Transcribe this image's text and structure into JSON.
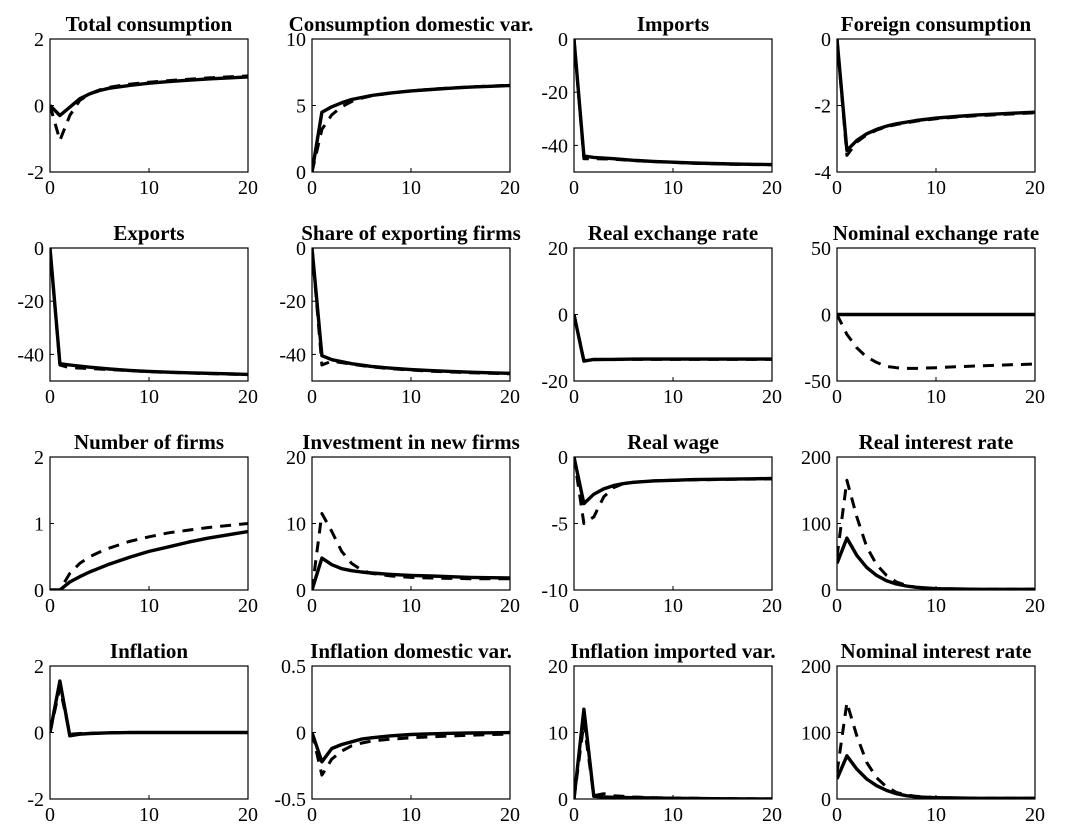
{
  "chart_data": [
    {
      "type": "line",
      "title": "Total consumption",
      "xlim": [
        0,
        20
      ],
      "ylim": [
        -2,
        2
      ],
      "xticks": [
        0,
        10,
        20
      ],
      "yticks": [
        -2,
        0,
        2
      ],
      "x": [
        0,
        1,
        2,
        3,
        4,
        5,
        6,
        8,
        10,
        12,
        14,
        16,
        18,
        20
      ],
      "series": [
        {
          "style": "solid",
          "values": [
            0,
            -0.3,
            -0.05,
            0.2,
            0.35,
            0.45,
            0.52,
            0.6,
            0.67,
            0.72,
            0.76,
            0.8,
            0.83,
            0.86
          ]
        },
        {
          "style": "dashed",
          "values": [
            0,
            -1.05,
            -0.3,
            0.15,
            0.35,
            0.47,
            0.55,
            0.64,
            0.7,
            0.75,
            0.79,
            0.83,
            0.86,
            0.89
          ]
        }
      ]
    },
    {
      "type": "line",
      "title": "Consumption domestic var.",
      "xlim": [
        0,
        20
      ],
      "ylim": [
        0,
        10
      ],
      "xticks": [
        0,
        10,
        20
      ],
      "yticks": [
        0,
        5,
        10
      ],
      "x": [
        0,
        1,
        2,
        3,
        4,
        5,
        6,
        8,
        10,
        12,
        14,
        16,
        18,
        20
      ],
      "series": [
        {
          "style": "solid",
          "values": [
            0,
            4.5,
            4.9,
            5.2,
            5.45,
            5.6,
            5.75,
            5.95,
            6.1,
            6.2,
            6.3,
            6.38,
            6.44,
            6.5
          ]
        },
        {
          "style": "dashed",
          "values": [
            0,
            3.2,
            4.3,
            4.9,
            5.3,
            5.55,
            5.72,
            5.95,
            6.1,
            6.22,
            6.32,
            6.4,
            6.46,
            6.52
          ]
        }
      ]
    },
    {
      "type": "line",
      "title": "Imports",
      "xlim": [
        0,
        20
      ],
      "ylim": [
        -50,
        0
      ],
      "xticks": [
        0,
        10,
        20
      ],
      "yticks": [
        -40,
        -20,
        0
      ],
      "x": [
        0,
        1,
        2,
        4,
        6,
        8,
        10,
        12,
        14,
        16,
        18,
        20
      ],
      "series": [
        {
          "style": "solid",
          "values": [
            0,
            -44,
            -44.5,
            -45,
            -45.6,
            -46,
            -46.3,
            -46.6,
            -46.8,
            -47,
            -47.1,
            -47.2
          ]
        },
        {
          "style": "dashed",
          "values": [
            0,
            -45,
            -45,
            -45.2,
            -45.7,
            -46.1,
            -46.4,
            -46.7,
            -46.9,
            -47.1,
            -47.2,
            -47.3
          ]
        }
      ]
    },
    {
      "type": "line",
      "title": "Foreign consumption",
      "xlim": [
        0,
        20
      ],
      "ylim": [
        -4,
        0
      ],
      "xticks": [
        0,
        10,
        20
      ],
      "yticks": [
        -4,
        -2,
        0
      ],
      "x": [
        0,
        1,
        2,
        3,
        4,
        5,
        6,
        8,
        10,
        12,
        14,
        16,
        18,
        20
      ],
      "series": [
        {
          "style": "solid",
          "values": [
            0,
            -3.35,
            -3.05,
            -2.85,
            -2.72,
            -2.62,
            -2.55,
            -2.45,
            -2.38,
            -2.33,
            -2.29,
            -2.26,
            -2.23,
            -2.2
          ]
        },
        {
          "style": "dashed",
          "values": [
            0,
            -3.5,
            -3.1,
            -2.88,
            -2.74,
            -2.64,
            -2.57,
            -2.47,
            -2.4,
            -2.35,
            -2.31,
            -2.28,
            -2.25,
            -2.22
          ]
        }
      ]
    },
    {
      "type": "line",
      "title": "Exports",
      "xlim": [
        0,
        20
      ],
      "ylim": [
        -50,
        0
      ],
      "xticks": [
        0,
        10,
        20
      ],
      "yticks": [
        -40,
        -20,
        0
      ],
      "x": [
        0,
        1,
        2,
        4,
        6,
        8,
        10,
        12,
        14,
        16,
        18,
        20
      ],
      "series": [
        {
          "style": "solid",
          "values": [
            0,
            -43.5,
            -44,
            -44.8,
            -45.5,
            -46,
            -46.4,
            -46.7,
            -46.9,
            -47.1,
            -47.3,
            -47.5
          ]
        },
        {
          "style": "dashed",
          "values": [
            0,
            -44,
            -45,
            -45.3,
            -45.7,
            -46.1,
            -46.5,
            -46.8,
            -47,
            -47.2,
            -47.4,
            -47.6
          ]
        }
      ]
    },
    {
      "type": "line",
      "title": "Share of exporting firms",
      "xlim": [
        0,
        20
      ],
      "ylim": [
        -50,
        0
      ],
      "xticks": [
        0,
        10,
        20
      ],
      "yticks": [
        -40,
        -20,
        0
      ],
      "x": [
        0,
        1,
        2,
        4,
        6,
        8,
        10,
        12,
        14,
        16,
        18,
        20
      ],
      "series": [
        {
          "style": "solid",
          "values": [
            0,
            -40.5,
            -42,
            -43.5,
            -44.5,
            -45.2,
            -45.7,
            -46.1,
            -46.4,
            -46.7,
            -46.9,
            -47.1
          ]
        },
        {
          "style": "dashed",
          "values": [
            0,
            -44,
            -42.5,
            -43.7,
            -44.7,
            -45.4,
            -45.9,
            -46.3,
            -46.6,
            -46.9,
            -47.1,
            -47.3
          ]
        }
      ]
    },
    {
      "type": "line",
      "title": "Real exchange rate",
      "xlim": [
        0,
        20
      ],
      "ylim": [
        -20,
        20
      ],
      "xticks": [
        0,
        10,
        20
      ],
      "yticks": [
        -20,
        0,
        20
      ],
      "x": [
        0,
        1,
        2,
        4,
        6,
        8,
        10,
        12,
        14,
        16,
        18,
        20
      ],
      "series": [
        {
          "style": "solid",
          "values": [
            0,
            -14,
            -13.5,
            -13.5,
            -13.4,
            -13.4,
            -13.4,
            -13.4,
            -13.4,
            -13.4,
            -13.4,
            -13.4
          ]
        },
        {
          "style": "dashed",
          "values": [
            0,
            -13.8,
            -13.6,
            -13.5,
            -13.5,
            -13.5,
            -13.5,
            -13.5,
            -13.5,
            -13.5,
            -13.5,
            -13.5
          ]
        }
      ]
    },
    {
      "type": "line",
      "title": "Nominal exchange rate",
      "xlim": [
        0,
        20
      ],
      "ylim": [
        -50,
        50
      ],
      "xticks": [
        0,
        10,
        20
      ],
      "yticks": [
        -50,
        0,
        50
      ],
      "x": [
        0,
        1,
        2,
        3,
        4,
        5,
        6,
        7,
        8,
        10,
        12,
        14,
        16,
        18,
        20
      ],
      "series": [
        {
          "style": "solid",
          "values": [
            0,
            0,
            0,
            0,
            0,
            0,
            0,
            0,
            0,
            0,
            0,
            0,
            0,
            0,
            0
          ]
        },
        {
          "style": "dashed",
          "values": [
            0,
            -15,
            -25,
            -32,
            -36,
            -39,
            -40,
            -40.5,
            -40.5,
            -40,
            -39.3,
            -38.7,
            -38.2,
            -37.7,
            -37.3
          ]
        }
      ]
    },
    {
      "type": "line",
      "title": "Number of firms",
      "xlim": [
        0,
        20
      ],
      "ylim": [
        0,
        2
      ],
      "xticks": [
        0,
        10,
        20
      ],
      "yticks": [
        0,
        1,
        2
      ],
      "x": [
        0,
        1,
        2,
        3,
        4,
        5,
        6,
        8,
        10,
        12,
        14,
        16,
        18,
        20
      ],
      "series": [
        {
          "style": "solid",
          "values": [
            0,
            0,
            0.12,
            0.2,
            0.27,
            0.33,
            0.39,
            0.49,
            0.58,
            0.65,
            0.72,
            0.78,
            0.83,
            0.88
          ]
        },
        {
          "style": "dashed",
          "values": [
            0,
            0,
            0.25,
            0.4,
            0.5,
            0.57,
            0.63,
            0.73,
            0.8,
            0.86,
            0.9,
            0.94,
            0.97,
            1.0
          ]
        }
      ]
    },
    {
      "type": "line",
      "title": "Investment in new firms",
      "xlim": [
        0,
        20
      ],
      "ylim": [
        0,
        20
      ],
      "xticks": [
        0,
        10,
        20
      ],
      "yticks": [
        0,
        10,
        20
      ],
      "x": [
        0,
        1,
        2,
        3,
        4,
        5,
        6,
        8,
        10,
        12,
        14,
        16,
        18,
        20
      ],
      "series": [
        {
          "style": "solid",
          "values": [
            0,
            4.8,
            3.8,
            3.2,
            2.9,
            2.7,
            2.55,
            2.35,
            2.2,
            2.1,
            2.0,
            1.9,
            1.85,
            1.8
          ]
        },
        {
          "style": "dashed",
          "values": [
            0,
            11.5,
            8.8,
            5.8,
            4.0,
            3.0,
            2.5,
            2.1,
            1.9,
            1.8,
            1.75,
            1.7,
            1.7,
            1.7
          ]
        }
      ]
    },
    {
      "type": "line",
      "title": "Real wage",
      "xlim": [
        0,
        20
      ],
      "ylim": [
        -10,
        0
      ],
      "xticks": [
        0,
        10,
        20
      ],
      "yticks": [
        -10,
        -5,
        0
      ],
      "x": [
        0,
        1,
        2,
        3,
        4,
        5,
        6,
        8,
        10,
        12,
        14,
        16,
        18,
        20
      ],
      "series": [
        {
          "style": "solid",
          "values": [
            0,
            -3.5,
            -2.8,
            -2.4,
            -2.15,
            -2.0,
            -1.9,
            -1.8,
            -1.75,
            -1.7,
            -1.68,
            -1.66,
            -1.64,
            -1.62
          ]
        },
        {
          "style": "dashed",
          "values": [
            0,
            -5.0,
            -4.5,
            -3.0,
            -2.3,
            -2.0,
            -1.9,
            -1.8,
            -1.75,
            -1.72,
            -1.7,
            -1.68,
            -1.66,
            -1.65
          ]
        }
      ]
    },
    {
      "type": "line",
      "title": "Real interest rate",
      "xlim": [
        0,
        20
      ],
      "ylim": [
        0,
        200
      ],
      "xticks": [
        0,
        10,
        20
      ],
      "yticks": [
        0,
        100,
        200
      ],
      "x": [
        0,
        1,
        2,
        3,
        4,
        5,
        6,
        7,
        8,
        10,
        12,
        14,
        16,
        18,
        20
      ],
      "series": [
        {
          "style": "solid",
          "values": [
            40,
            78,
            52,
            34,
            22,
            14,
            9,
            6,
            4,
            2,
            1.5,
            1,
            1,
            1,
            1
          ]
        },
        {
          "style": "dashed",
          "values": [
            50,
            165,
            110,
            65,
            38,
            22,
            12,
            7,
            4,
            2,
            1.5,
            1,
            1,
            1,
            1
          ]
        }
      ]
    },
    {
      "type": "line",
      "title": "Inflation",
      "xlim": [
        0,
        20
      ],
      "ylim": [
        -2,
        2
      ],
      "xticks": [
        0,
        10,
        20
      ],
      "yticks": [
        -2,
        0,
        2
      ],
      "x": [
        0,
        1,
        2,
        3,
        4,
        6,
        8,
        10,
        12,
        14,
        16,
        18,
        20
      ],
      "series": [
        {
          "style": "solid",
          "values": [
            0,
            1.55,
            -0.1,
            -0.05,
            -0.03,
            -0.01,
            0,
            0,
            0,
            0,
            0,
            0,
            0
          ]
        },
        {
          "style": "dashed",
          "values": [
            0,
            1.35,
            -0.05,
            -0.03,
            -0.02,
            -0.01,
            0,
            0,
            0,
            0,
            0,
            0,
            0
          ]
        }
      ]
    },
    {
      "type": "line",
      "title": "Inflation domestic var.",
      "xlim": [
        0,
        20
      ],
      "ylim": [
        -0.5,
        0.5
      ],
      "xticks": [
        0,
        10,
        20
      ],
      "yticks": [
        -0.5,
        0,
        0.5
      ],
      "x": [
        0,
        1,
        2,
        3,
        4,
        5,
        6,
        8,
        10,
        12,
        14,
        16,
        18,
        20
      ],
      "series": [
        {
          "style": "solid",
          "values": [
            0,
            -0.22,
            -0.12,
            -0.09,
            -0.07,
            -0.05,
            -0.04,
            -0.025,
            -0.015,
            -0.01,
            -0.006,
            -0.004,
            -0.002,
            -0.001
          ]
        },
        {
          "style": "dashed",
          "values": [
            0,
            -0.32,
            -0.2,
            -0.14,
            -0.1,
            -0.08,
            -0.065,
            -0.05,
            -0.04,
            -0.032,
            -0.026,
            -0.02,
            -0.016,
            -0.012
          ]
        }
      ]
    },
    {
      "type": "line",
      "title": "Inflation imported var.",
      "xlim": [
        0,
        20
      ],
      "ylim": [
        0,
        20
      ],
      "xticks": [
        0,
        10,
        20
      ],
      "yticks": [
        0,
        10,
        20
      ],
      "x": [
        0,
        1,
        2,
        3,
        4,
        6,
        8,
        10,
        12,
        14,
        16,
        18,
        20
      ],
      "series": [
        {
          "style": "solid",
          "values": [
            0,
            13.5,
            0.4,
            0.3,
            0.25,
            0.2,
            0.15,
            0.1,
            0.08,
            0.05,
            0.03,
            0.02,
            0.01
          ]
        },
        {
          "style": "dashed",
          "values": [
            0,
            11.5,
            0.5,
            0.8,
            0.5,
            0.3,
            0.2,
            0.15,
            0.1,
            0.08,
            0.05,
            0.03,
            0.02
          ]
        }
      ]
    },
    {
      "type": "line",
      "title": "Nominal interest rate",
      "xlim": [
        0,
        20
      ],
      "ylim": [
        0,
        200
      ],
      "xticks": [
        0,
        10,
        20
      ],
      "yticks": [
        0,
        100,
        200
      ],
      "x": [
        0,
        1,
        2,
        3,
        4,
        5,
        6,
        7,
        8,
        10,
        12,
        14,
        16,
        18,
        20
      ],
      "series": [
        {
          "style": "solid",
          "values": [
            30,
            65,
            45,
            30,
            20,
            13,
            8,
            5,
            3,
            2,
            1.5,
            1,
            1,
            1,
            1
          ]
        },
        {
          "style": "dashed",
          "values": [
            40,
            145,
            95,
            55,
            32,
            18,
            10,
            6,
            4,
            2,
            1.5,
            1,
            1,
            1,
            1
          ]
        }
      ]
    }
  ]
}
